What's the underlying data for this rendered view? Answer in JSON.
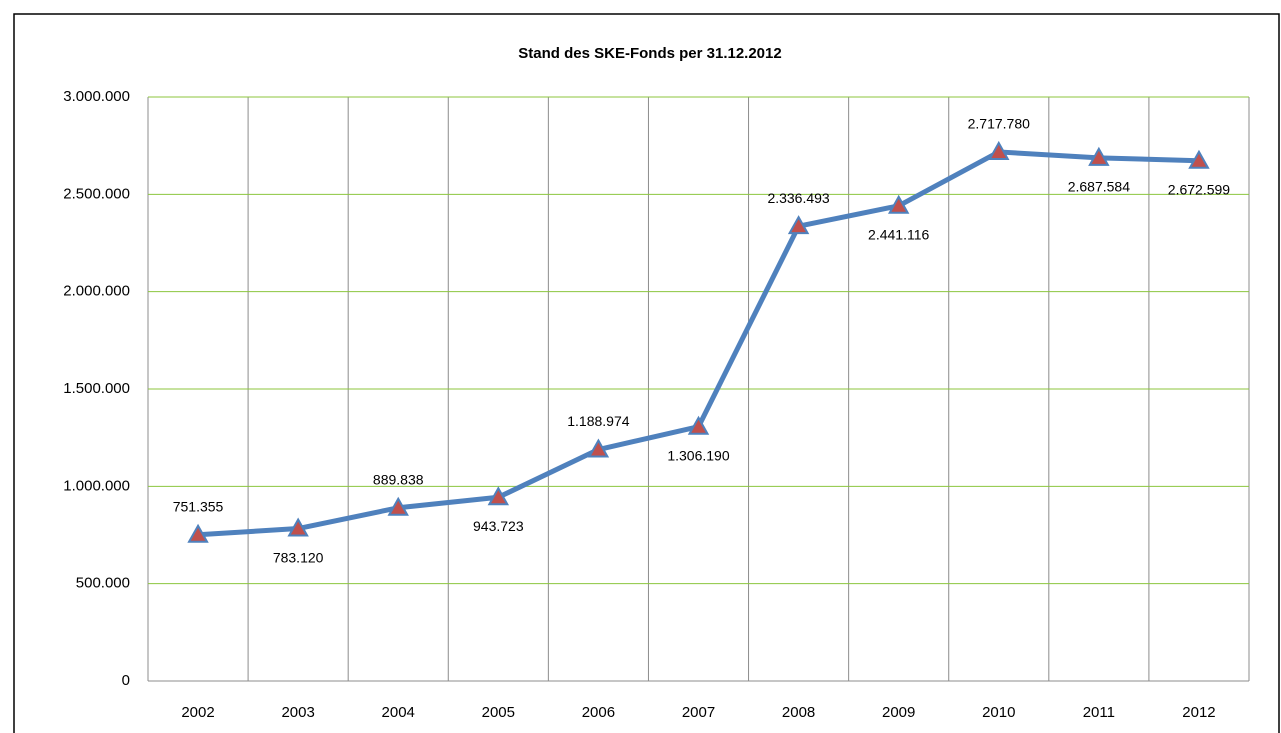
{
  "chart_data": {
    "type": "line",
    "title": "Stand des SKE-Fonds per 31.12.2012",
    "categories": [
      "2002",
      "2003",
      "2004",
      "2005",
      "2006",
      "2007",
      "2008",
      "2009",
      "2010",
      "2011",
      "2012"
    ],
    "series": [
      {
        "name": "SKE-Fonds",
        "color": "#4f81bd",
        "marker_color": "#c0504d",
        "values": [
          751355,
          783120,
          889838,
          943723,
          1188974,
          1306190,
          2336493,
          2441116,
          2717780,
          2687584,
          2672599
        ],
        "value_labels": [
          "751.355",
          "783.120",
          "889.838",
          "943.723",
          "1.188.974",
          "1.306.190",
          "2.336.493",
          "2.441.116",
          "2.717.780",
          "2.687.584",
          "2.672.599"
        ]
      }
    ],
    "ylim": [
      0,
      3000000
    ],
    "yticks": [
      0,
      {
        "value": 500000,
        "label": "500.000"
      },
      {
        "value": 1000000,
        "label": "1.000.000"
      },
      {
        "value": 1500000,
        "label": "1.500.000"
      },
      {
        "value": 2000000,
        "label": "2.000.000"
      },
      {
        "value": 2500000,
        "label": "2.500.000"
      },
      {
        "value": 3000000,
        "label": "3.000.000"
      }
    ],
    "grid": true
  }
}
